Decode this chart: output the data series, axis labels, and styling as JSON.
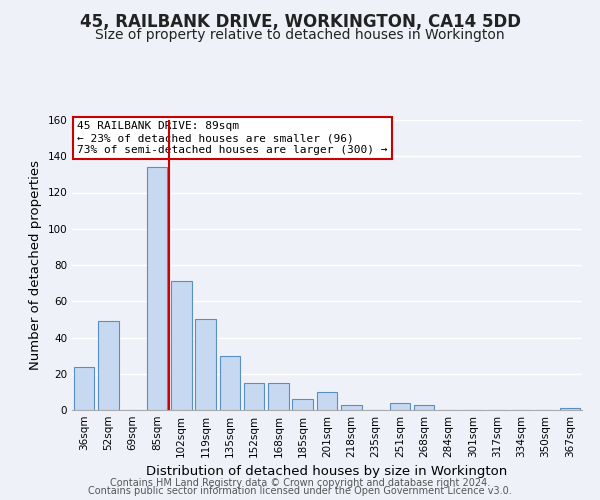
{
  "title": "45, RAILBANK DRIVE, WORKINGTON, CA14 5DD",
  "subtitle": "Size of property relative to detached houses in Workington",
  "xlabel": "Distribution of detached houses by size in Workington",
  "ylabel": "Number of detached properties",
  "bar_labels": [
    "36sqm",
    "52sqm",
    "69sqm",
    "85sqm",
    "102sqm",
    "119sqm",
    "135sqm",
    "152sqm",
    "168sqm",
    "185sqm",
    "201sqm",
    "218sqm",
    "235sqm",
    "251sqm",
    "268sqm",
    "284sqm",
    "301sqm",
    "317sqm",
    "334sqm",
    "350sqm",
    "367sqm"
  ],
  "bar_values": [
    24,
    49,
    0,
    134,
    71,
    50,
    30,
    15,
    15,
    6,
    10,
    3,
    0,
    4,
    3,
    0,
    0,
    0,
    0,
    0,
    1
  ],
  "bar_color": "#c6d9f0",
  "bar_edge_color": "#5a8fc2",
  "vline_color": "#cc0000",
  "annotation_title": "45 RAILBANK DRIVE: 89sqm",
  "annotation_line1": "← 23% of detached houses are smaller (96)",
  "annotation_line2": "73% of semi-detached houses are larger (300) →",
  "annotation_box_color": "#ffffff",
  "annotation_box_edge": "#cc0000",
  "ylim": [
    0,
    160
  ],
  "yticks": [
    0,
    20,
    40,
    60,
    80,
    100,
    120,
    140,
    160
  ],
  "footer1": "Contains HM Land Registry data © Crown copyright and database right 2024.",
  "footer2": "Contains public sector information licensed under the Open Government Licence v3.0.",
  "bg_color": "#eef2f8",
  "grid_color": "#ffffff",
  "title_fontsize": 12,
  "subtitle_fontsize": 10,
  "axis_label_fontsize": 9.5,
  "tick_fontsize": 7.5,
  "footer_fontsize": 7,
  "annotation_fontsize": 8
}
